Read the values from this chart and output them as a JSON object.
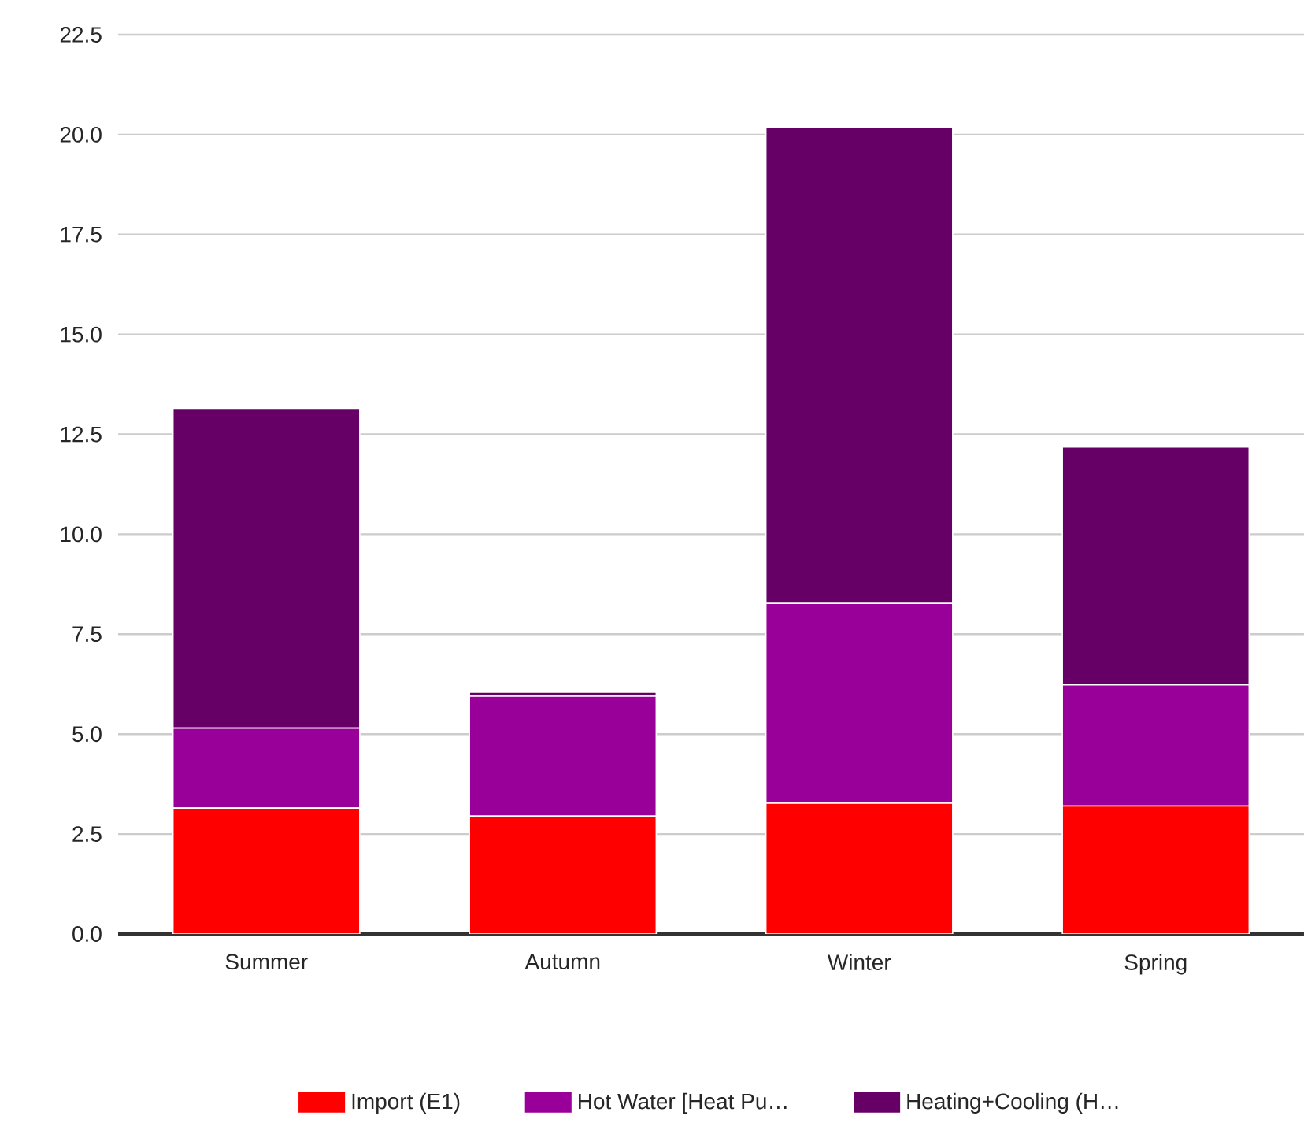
{
  "chart_data": {
    "type": "bar",
    "stacked": true,
    "categories": [
      "Summer",
      "Autumn",
      "Winter",
      "Spring"
    ],
    "series": [
      {
        "name": "Import (E1)",
        "color": "#ff0000",
        "values": [
          3.15,
          2.95,
          3.27,
          3.2
        ]
      },
      {
        "name": "Hot Water [Heat Pu…",
        "color": "#990099",
        "values": [
          2.0,
          3.0,
          5.0,
          3.03
        ]
      },
      {
        "name": "Heating+Cooling (H…",
        "color": "#660066",
        "values": [
          8.0,
          0.1,
          11.9,
          5.95
        ]
      }
    ],
    "ylim": [
      0,
      22.5
    ],
    "yticks": [
      {
        "value": 0,
        "label": "0.0"
      },
      {
        "value": 2.5,
        "label": "2.5"
      },
      {
        "value": 5,
        "label": "5.0"
      },
      {
        "value": 7.5,
        "label": "7.5"
      },
      {
        "value": 10,
        "label": "10.0"
      },
      {
        "value": 12.5,
        "label": "12.5"
      },
      {
        "value": 15,
        "label": "15.0"
      },
      {
        "value": 17.5,
        "label": "17.5"
      },
      {
        "value": 20,
        "label": "20.0"
      },
      {
        "value": 22.5,
        "label": "22.5"
      }
    ],
    "grid": "y",
    "legend": "bottom"
  }
}
